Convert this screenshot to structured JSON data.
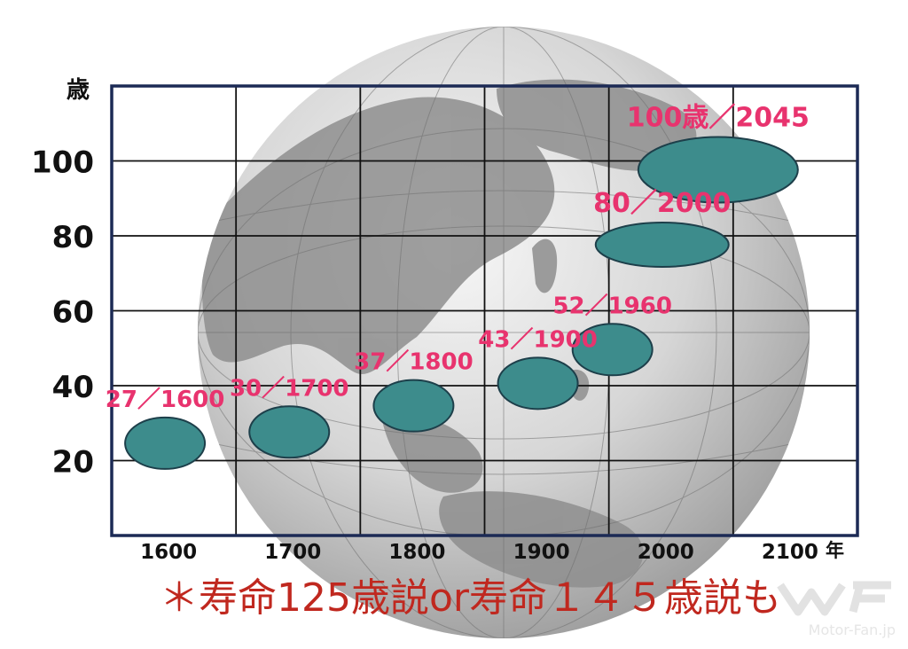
{
  "chart_data": {
    "type": "scatter",
    "y_unit_label": "歳",
    "x_unit_label": "年",
    "x_ticks": [
      "1600",
      "1700",
      "1800",
      "1900",
      "2000",
      "2100"
    ],
    "y_ticks": [
      "20",
      "40",
      "60",
      "80",
      "100"
    ],
    "xlim": [
      1550,
      2150
    ],
    "ylim": [
      0,
      120
    ],
    "grid": true,
    "points": [
      {
        "x": 1600,
        "y": 27,
        "label": "27／1600"
      },
      {
        "x": 1700,
        "y": 30,
        "label": "30／1700"
      },
      {
        "x": 1800,
        "y": 37,
        "label": "37／1800"
      },
      {
        "x": 1900,
        "y": 43,
        "label": "43／1900"
      },
      {
        "x": 1960,
        "y": 52,
        "label": "52／1960"
      },
      {
        "x": 2000,
        "y": 80,
        "label": "80／2000"
      },
      {
        "x": 2045,
        "y": 100,
        "label": "100歳／2045"
      }
    ]
  },
  "footnote": "＊寿命125歳説or寿命１４５歳説も",
  "watermark": "Motor-Fan.jp",
  "colors": {
    "frame": "#1c2a55",
    "marker": "#3d8c8c",
    "marker_stroke": "#1d3f4a",
    "data_label": "#e8336e",
    "footnote": "#c0281f"
  }
}
